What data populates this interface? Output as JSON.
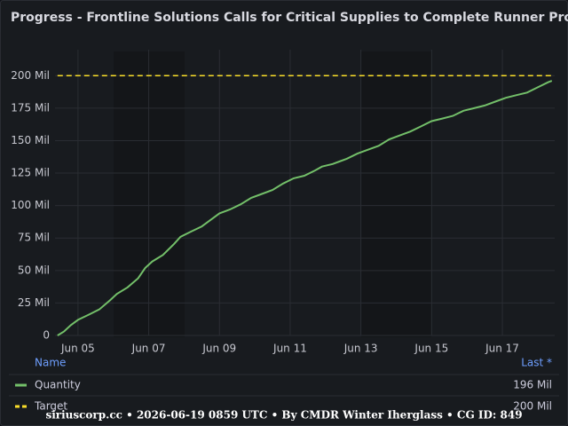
{
  "chart_data": {
    "type": "line",
    "title": "Progress - Frontline Solutions Calls for Critical Supplies to Complete Runner Prod...",
    "xlim": [
      4.35,
      18.48
    ],
    "xticks": [
      {
        "value": 5,
        "label": "Jun 05"
      },
      {
        "value": 7,
        "label": "Jun 07"
      },
      {
        "value": 9,
        "label": "Jun 09"
      },
      {
        "value": 11,
        "label": "Jun 11"
      },
      {
        "value": 13,
        "label": "Jun 13"
      },
      {
        "value": 15,
        "label": "Jun 15"
      },
      {
        "value": 17,
        "label": "Jun 17"
      }
    ],
    "ylim": [
      0,
      220
    ],
    "yticks": [
      0,
      {
        "value": 25,
        "label": "25 Mil"
      },
      {
        "value": 50,
        "label": "50 Mil"
      },
      {
        "value": 75,
        "label": "75 Mil"
      },
      {
        "value": 100,
        "label": "100 Mil"
      },
      {
        "value": 125,
        "label": "125 Mil"
      },
      {
        "value": 150,
        "label": "150 Mil"
      },
      {
        "value": 175,
        "label": "175 Mil"
      },
      {
        "value": 200,
        "label": "200 Mil"
      }
    ],
    "grid": true,
    "legend_columns": [
      "Name",
      "Last *"
    ],
    "series": [
      {
        "name": "Quantity",
        "color": "#73bf69",
        "dash": false,
        "x": [
          4.42,
          4.6,
          4.8,
          5.0,
          5.3,
          5.6,
          5.9,
          6.1,
          6.4,
          6.7,
          6.9,
          7.1,
          7.4,
          7.7,
          7.9,
          8.2,
          8.5,
          8.8,
          9.0,
          9.3,
          9.6,
          9.9,
          10.2,
          10.5,
          10.8,
          11.1,
          11.4,
          11.7,
          11.9,
          12.2,
          12.6,
          12.9,
          13.2,
          13.5,
          13.8,
          14.1,
          14.4,
          14.7,
          15.0,
          15.3,
          15.6,
          15.9,
          16.2,
          16.5,
          16.8,
          17.1,
          17.4,
          17.7,
          18.0,
          18.3,
          18.4
        ],
        "values": [
          0,
          3,
          8,
          12,
          16,
          20,
          27,
          32,
          37,
          44,
          52,
          57,
          62,
          70,
          76,
          80,
          84,
          90,
          94,
          97,
          101,
          106,
          109,
          112,
          117,
          121,
          123,
          127,
          130,
          132,
          136,
          140,
          143,
          146,
          151,
          154,
          157,
          161,
          165,
          167,
          169,
          173,
          175,
          177,
          180,
          183,
          185,
          187,
          191,
          195,
          196
        ],
        "last": {
          "value": 196,
          "label": "196 Mil"
        }
      },
      {
        "name": "Target",
        "color": "#fade2a",
        "dash": true,
        "x": [
          4.42,
          18.4
        ],
        "values": [
          200,
          200
        ],
        "last": {
          "value": 200,
          "label": "200 Mil"
        }
      }
    ],
    "footer": "siriuscorp.cc • 2026-06-19 0859 UTC • By CMDR Winter Iherglass • CG ID: 849"
  }
}
